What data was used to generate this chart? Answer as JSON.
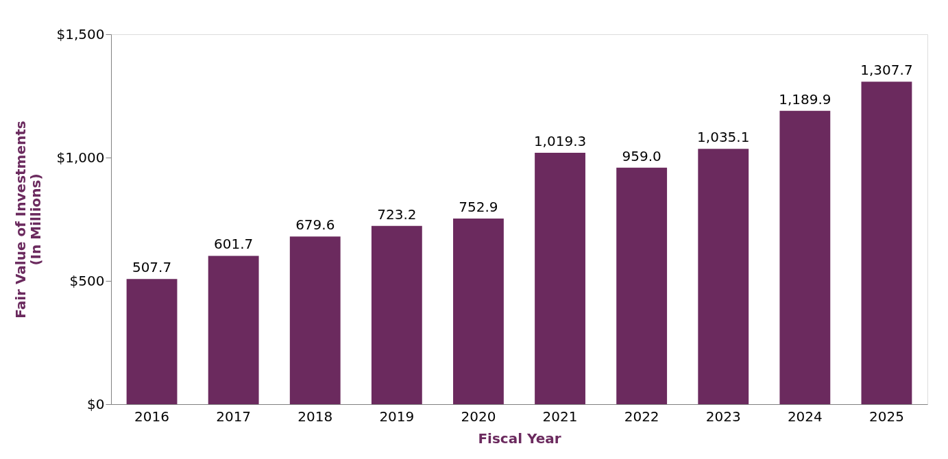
{
  "chart_data": {
    "type": "bar",
    "xlabel": "Fiscal Year",
    "ylabel": "Fair Value of Investments\n(In Millions)",
    "categories": [
      "2016",
      "2017",
      "2018",
      "2019",
      "2020",
      "2021",
      "2022",
      "2023",
      "2024",
      "2025"
    ],
    "values": [
      507.7,
      601.7,
      679.6,
      723.2,
      752.9,
      1019.3,
      959.0,
      1035.1,
      1189.9,
      1307.7
    ],
    "value_labels": [
      "507.7",
      "601.7",
      "679.6",
      "723.2",
      "752.9",
      "1,019.3",
      "959.0",
      "1,035.1",
      "1,189.9",
      "1,307.7"
    ],
    "color": "#6b2a5e",
    "ylim": [
      0,
      1500
    ],
    "yticks": [
      {
        "value": 0,
        "label": "$0"
      },
      {
        "value": 500,
        "label": "$500"
      },
      {
        "value": 1000,
        "label": "$1,000"
      },
      {
        "value": 1500,
        "label": "$1,500"
      }
    ],
    "grid": false
  }
}
